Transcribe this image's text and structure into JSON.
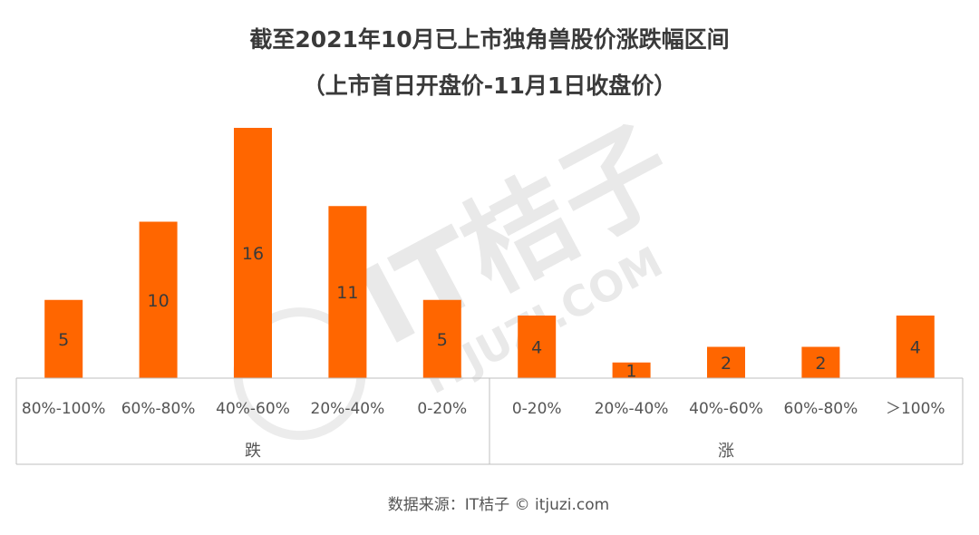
{
  "chart_data": {
    "type": "bar",
    "title": "截至2021年10月已上市独角兽股价涨跌幅区间",
    "subtitle": "（上市首日开盘价-11月1日收盘价）",
    "categories": [
      "80%-100%",
      "60%-80%",
      "40%-60%",
      "20%-40%",
      "0-20%",
      "0-20%",
      "20%-40%",
      "40%-60%",
      "60%-80%",
      "＞100%"
    ],
    "values": [
      5,
      10,
      16,
      11,
      5,
      4,
      1,
      2,
      2,
      4
    ],
    "groups": [
      {
        "label": "跌",
        "start": 0,
        "end": 4
      },
      {
        "label": "涨",
        "start": 5,
        "end": 9
      }
    ],
    "ylim": [
      0,
      16
    ],
    "bar_color": "#ff6600",
    "grid": false,
    "xlabel": "",
    "ylabel": "",
    "source": "数据来源：IT桔子 © itjuzi.com"
  },
  "watermark": {
    "brand": "IT桔子",
    "domain": "ITJUZI.COM"
  }
}
